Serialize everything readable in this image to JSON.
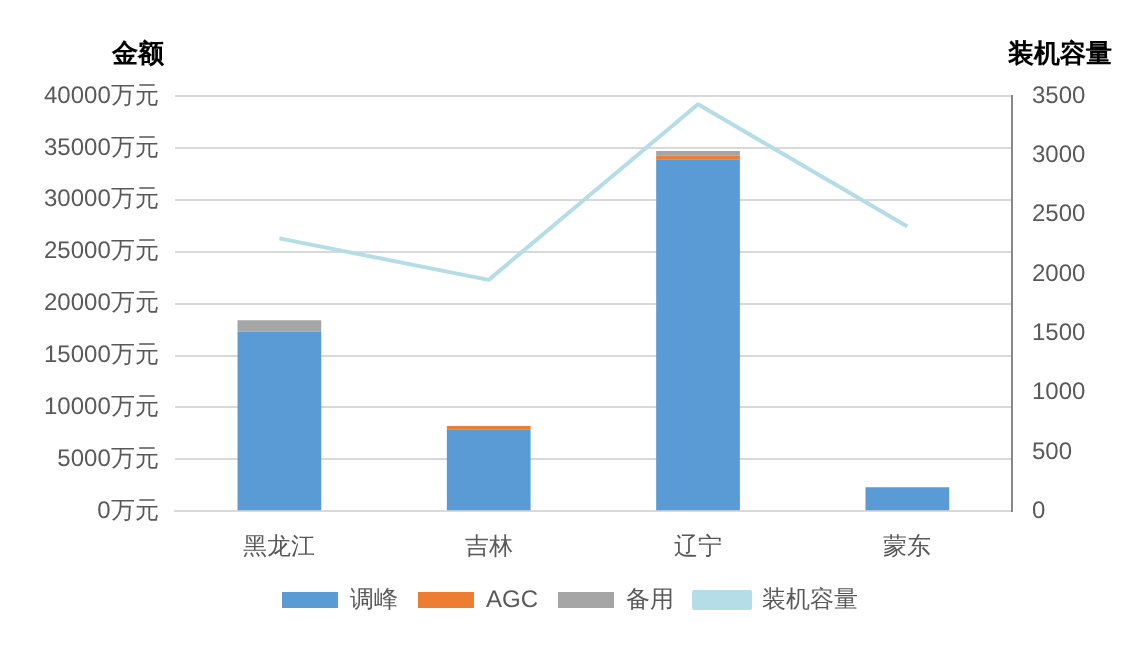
{
  "chart_data": {
    "type": "bar",
    "ylabel": "金额",
    "y2label": "装机容量",
    "categories": [
      "黑龙江",
      "吉林",
      "辽宁",
      "蒙东"
    ],
    "stacked": true,
    "series": [
      {
        "name": "调峰",
        "color": "#5b9bd5",
        "values": [
          17300,
          7900,
          33900,
          2300
        ]
      },
      {
        "name": "AGC",
        "color": "#ed7d31",
        "values": [
          0,
          300,
          350,
          0
        ]
      },
      {
        "name": "备用",
        "color": "#a5a5a5",
        "values": [
          1100,
          0,
          450,
          0
        ]
      },
      {
        "name": "装机容量",
        "type": "line",
        "axis": "y2",
        "color": "#b4dde8",
        "values": [
          2300,
          1950,
          3430,
          2400
        ]
      }
    ],
    "ylim": [
      0,
      40000
    ],
    "yticks": [
      {
        "value": 0,
        "label": "0万元"
      },
      {
        "value": 5000,
        "label": "5000万元"
      },
      {
        "value": 10000,
        "label": "10000万元"
      },
      {
        "value": 15000,
        "label": "15000万元"
      },
      {
        "value": 20000,
        "label": "20000万元"
      },
      {
        "value": 25000,
        "label": "25000万元"
      },
      {
        "value": 30000,
        "label": "30000万元"
      },
      {
        "value": 35000,
        "label": "35000万元"
      },
      {
        "value": 40000,
        "label": "40000万元"
      }
    ],
    "y2lim": [
      0,
      3500
    ],
    "y2ticks": [
      0,
      500,
      1000,
      1500,
      2000,
      2500,
      3000,
      3500
    ],
    "grid": "y",
    "legend": "bottom",
    "marker": "none"
  }
}
